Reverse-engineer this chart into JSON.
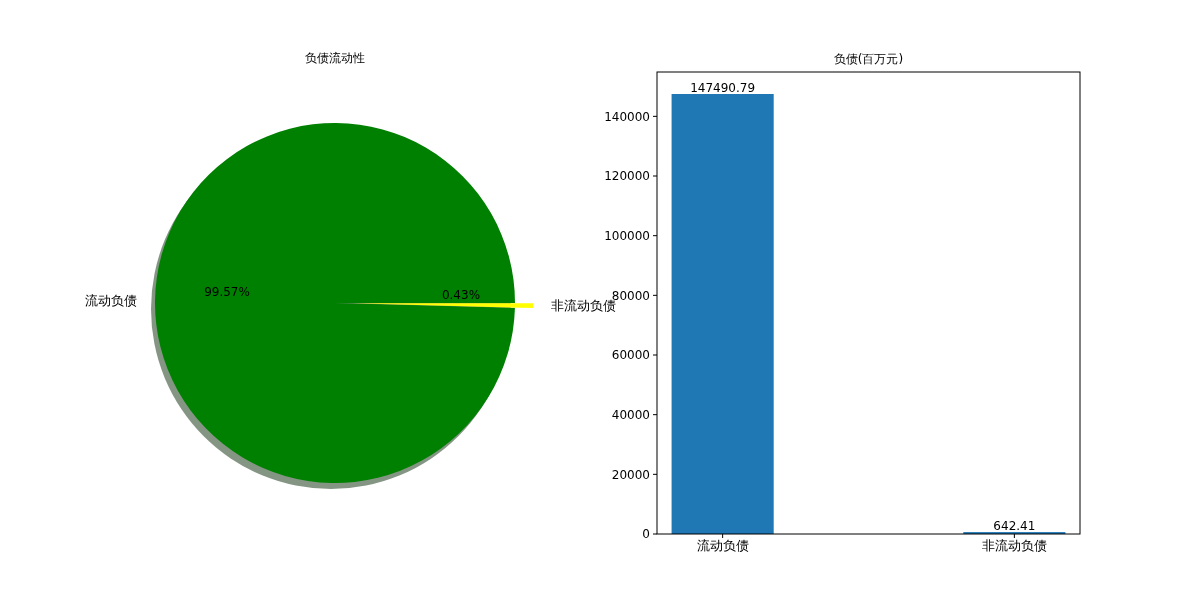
{
  "chart_data": [
    {
      "type": "pie",
      "title": "负债流动性",
      "categories": [
        "流动负债",
        "非流动负债"
      ],
      "values": [
        99.57,
        0.43
      ],
      "colors": [
        "#008000",
        "#ffff00"
      ],
      "value_labels": [
        "99.57%",
        "0.43%"
      ]
    },
    {
      "type": "bar",
      "title": "负债(百万元)",
      "categories": [
        "流动负债",
        "非流动负债"
      ],
      "values": [
        147490.79,
        642.41
      ],
      "color": "#1f77b4",
      "ylim": [
        0,
        154865
      ],
      "yticks": [
        0,
        20000,
        40000,
        60000,
        80000,
        100000,
        120000,
        140000
      ],
      "data_labels": true
    }
  ]
}
